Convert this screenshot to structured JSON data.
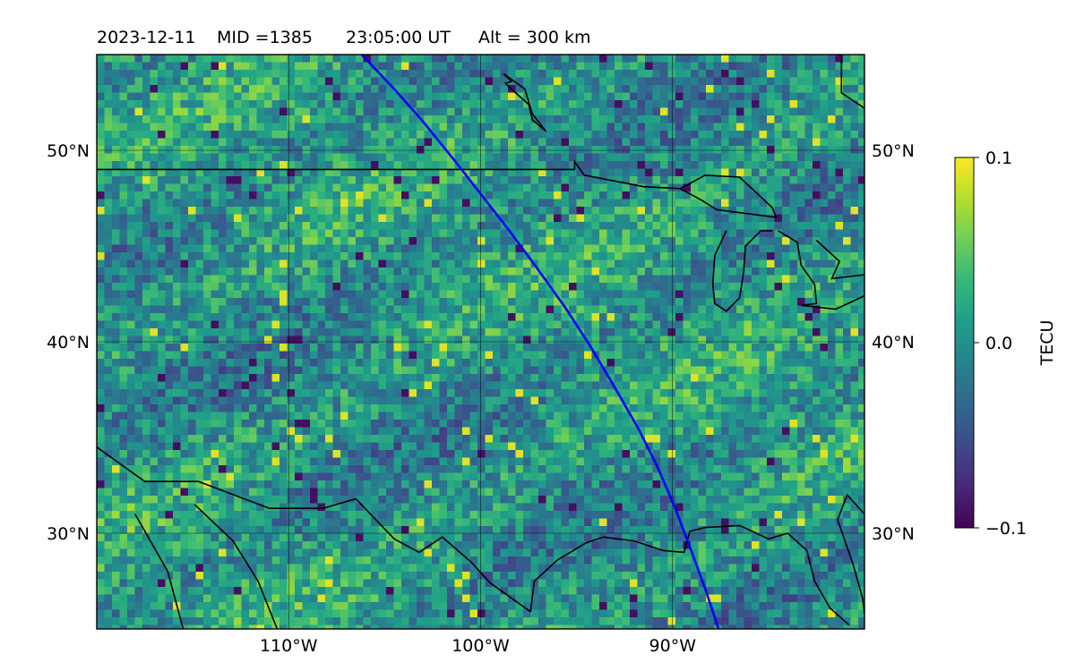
{
  "header": {
    "date": "2023-12-11",
    "mid": "MID =1385",
    "time": "23:05:00  UT",
    "alt": "Alt = 300 km"
  },
  "map": {
    "lon_range": [
      -120,
      -80
    ],
    "lat_range": [
      25,
      55
    ],
    "gridlines": true,
    "lon_ticks": [
      {
        "value": -110,
        "label": "110°W"
      },
      {
        "value": -100,
        "label": "100°W"
      },
      {
        "value": -90,
        "label": "90°W"
      }
    ],
    "lat_ticks": [
      {
        "value": 50,
        "label": "50°N"
      },
      {
        "value": 40,
        "label": "40°N"
      },
      {
        "value": 30,
        "label": "30°N"
      }
    ],
    "track_color": "#0000ff",
    "track": [
      [
        -106.2,
        55
      ],
      [
        -104.5,
        53.2
      ],
      [
        -103,
        51.5
      ],
      [
        -101.3,
        49.4
      ],
      [
        -99.9,
        47.6
      ],
      [
        -98.5,
        45.8
      ],
      [
        -97.1,
        43.9
      ],
      [
        -95.6,
        41.8
      ],
      [
        -94.3,
        39.8
      ],
      [
        -93,
        37.6
      ],
      [
        -91.8,
        35.5
      ],
      [
        -90.8,
        33.5
      ],
      [
        -89.9,
        31.4
      ],
      [
        -89.1,
        29.3
      ],
      [
        -88.3,
        27.1
      ],
      [
        -87.6,
        25
      ]
    ]
  },
  "colorbar": {
    "label": "TECU",
    "ticks": [
      "0.1",
      "0.0",
      "−0.1"
    ],
    "colormap": [
      "#440154",
      "#482878",
      "#3e4a89",
      "#31688e",
      "#26828e",
      "#1f9e89",
      "#35b779",
      "#6ece58",
      "#b5de2b",
      "#fde725"
    ]
  }
}
